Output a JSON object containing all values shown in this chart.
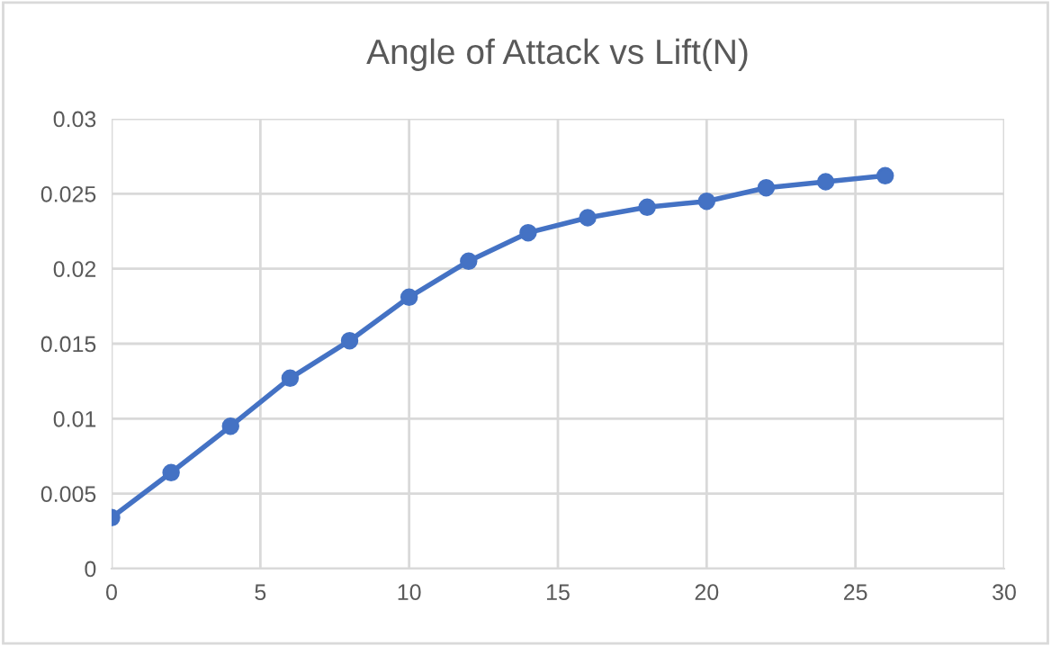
{
  "chart_data": {
    "type": "line",
    "title": "Angle of Attack vs Lift(N)",
    "x": [
      0,
      2,
      4,
      6,
      8,
      10,
      12,
      14,
      16,
      18,
      20,
      22,
      24,
      26
    ],
    "series": [
      {
        "color": "#4472c4",
        "values": [
          0.0034,
          0.0064,
          0.0095,
          0.0127,
          0.0152,
          0.0181,
          0.0205,
          0.0224,
          0.0234,
          0.0241,
          0.0245,
          0.0254,
          0.0258,
          0.0262
        ]
      }
    ],
    "xlim": [
      0,
      30
    ],
    "xticks": [
      0,
      5,
      10,
      15,
      20,
      25,
      30
    ],
    "ylim": [
      0,
      0.03
    ],
    "yticks": [
      0,
      0.005,
      0.01,
      0.015,
      0.02,
      0.025,
      0.03
    ],
    "grid": true,
    "marker": "circle",
    "line_style": "solid"
  }
}
